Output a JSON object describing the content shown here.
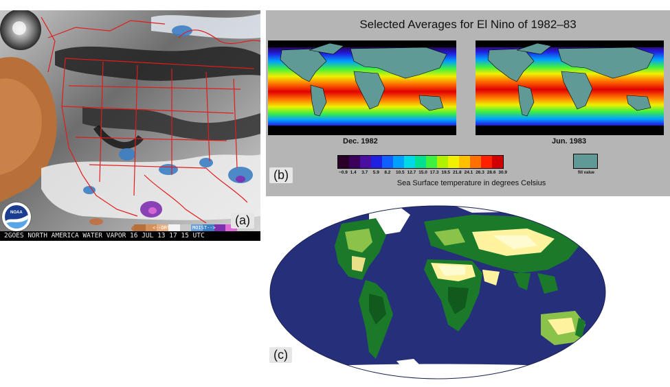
{
  "panel_a": {
    "label": "(a)",
    "caption": "GOES NORTH AMERICA WATER VAPOR 16 JUL 13 17 15 UTC",
    "caption_prefix": "2",
    "scale_left": "<--DRY",
    "scale_right": "MOIST-->",
    "logo_text": "NOAA",
    "colors": {
      "land_dry": "#b8703a",
      "border": "#e21b1b",
      "dark": "#1e1e1e"
    }
  },
  "panel_b": {
    "label": "(b)",
    "title": "Selected Averages for El Nino of 1982–83",
    "map_left_label": "Dec. 1982",
    "map_right_label": "Jun. 1983",
    "colorbar_ticks": [
      "−0.9",
      "1.4",
      "3.7",
      "5.9",
      "8.2",
      "10.5",
      "12.7",
      "15.0",
      "17.3",
      "19.5",
      "21.8",
      "24.1",
      "26.3",
      "28.6",
      "30.9"
    ],
    "colorbar_colors": [
      "#2a0028",
      "#3a005c",
      "#4a0fa0",
      "#2020e0",
      "#1060ff",
      "#00a0ff",
      "#00d8e8",
      "#00e090",
      "#40f040",
      "#b0f000",
      "#f0f000",
      "#ffc000",
      "#ff7000",
      "#ff2000",
      "#d00000"
    ],
    "fill_value_label": "fill value",
    "axis_label": "Sea Surface temperature in degrees Celsius",
    "fill_color": "#5f9a96"
  },
  "panel_c": {
    "label": "(c)",
    "colors": {
      "ocean": "#26307a",
      "ice": "#ffffff",
      "desert": "#fff3a0",
      "vegetation": "#1b7a2a"
    }
  }
}
